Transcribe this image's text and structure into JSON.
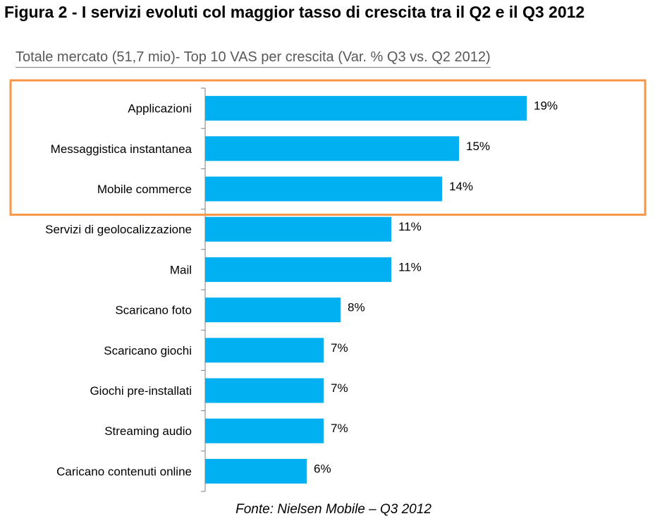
{
  "figure_title": "Figura 2 - I servizi evoluti col maggior tasso di crescita tra il Q2 e il Q3 2012",
  "source_note": "Fonte: Nielsen Mobile – Q3 2012",
  "colors": {
    "bar": "#00b0f0",
    "highlight_border": "#f79646",
    "axis": "#7f7f7f"
  },
  "chart_data": {
    "type": "bar",
    "orientation": "horizontal",
    "title": "Totale mercato (51,7 mio)- Top 10 VAS per crescita (Var. % Q3 vs. Q2 2012)",
    "xlabel": "",
    "ylabel": "",
    "unit": "%",
    "xlim": [
      0,
      20
    ],
    "grid": false,
    "categories": [
      "Applicazioni",
      "Messaggistica instantanea",
      "Mobile commerce",
      "Servizi di geolocalizzazione",
      "Mail",
      "Scaricano foto",
      "Scaricano giochi",
      "Giochi pre-installati",
      "Streaming audio",
      "Caricano contenuti online"
    ],
    "values": [
      19,
      15,
      14,
      11,
      11,
      8,
      7,
      7,
      7,
      6
    ],
    "data_labels": [
      "19%",
      "15%",
      "14%",
      "11%",
      "11%",
      "8%",
      "7%",
      "7%",
      "7%",
      "6%"
    ],
    "highlighted_count": 3
  }
}
